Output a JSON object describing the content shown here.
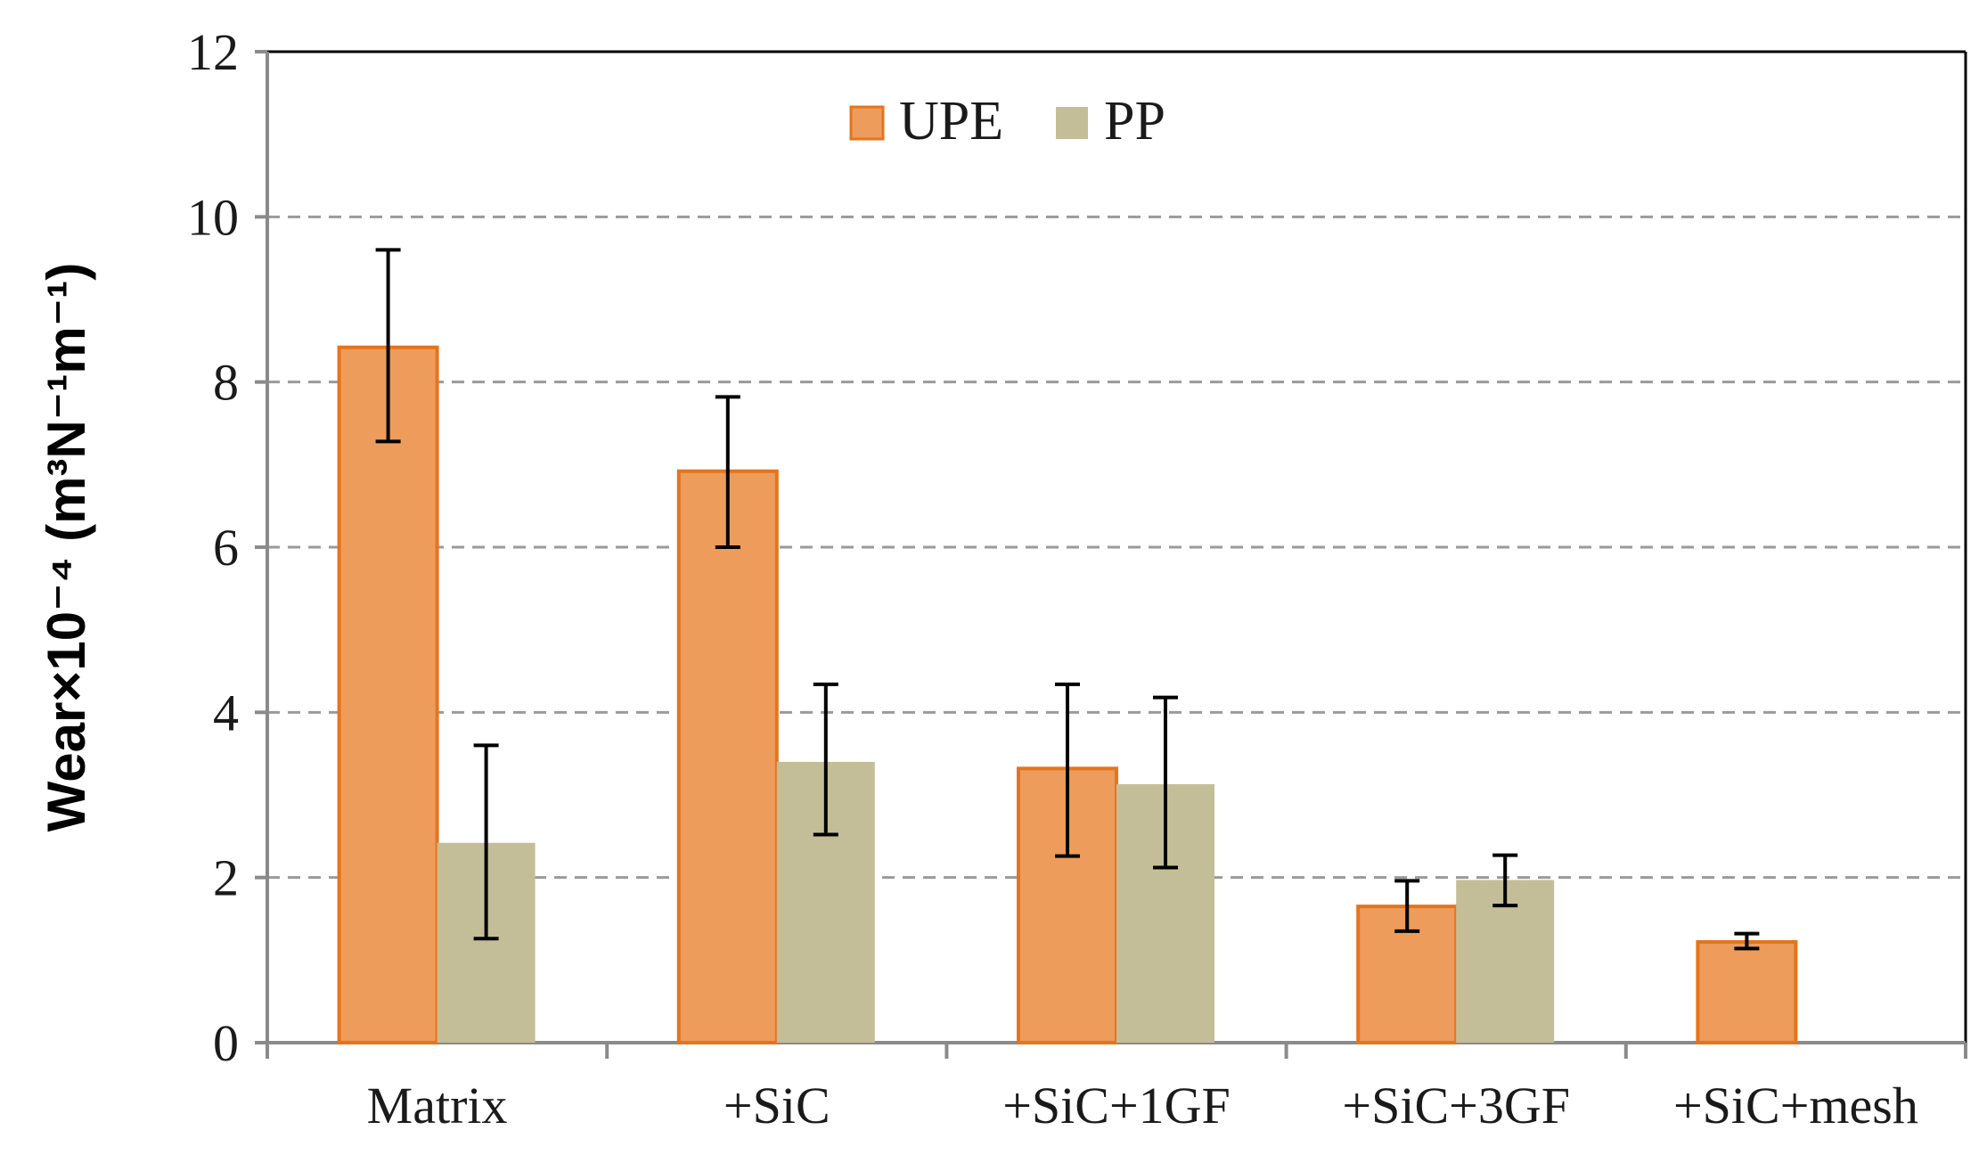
{
  "chart_data": {
    "type": "bar",
    "title": "",
    "xlabel": "",
    "ylabel": "Wear×10⁻⁴ (m³N⁻¹m⁻¹)",
    "ylim": [
      0,
      12
    ],
    "yticks": [
      "0",
      "2",
      "4",
      "6",
      "8",
      "10",
      "12"
    ],
    "grid": "horizontal-dashed",
    "legend_position": "top-left",
    "categories": [
      "Matrix",
      "+SiC",
      "+SiC+1GF",
      "+SiC+3GF",
      "+SiC+mesh"
    ],
    "series": [
      {
        "name": "UPE",
        "fill": "#ED9C5B",
        "stroke": "#E5741D",
        "values": [
          8.42,
          6.92,
          3.32,
          1.65,
          1.22
        ],
        "err_low": [
          7.28,
          6.0,
          2.26,
          1.35,
          1.14
        ],
        "err_high": [
          9.6,
          7.82,
          4.34,
          1.96,
          1.32
        ]
      },
      {
        "name": "PP",
        "fill": "#C4BE98",
        "stroke": "#C4BE98",
        "values": [
          2.42,
          3.4,
          3.13,
          1.97,
          null
        ],
        "err_low": [
          1.26,
          2.52,
          2.12,
          1.66,
          null
        ],
        "err_high": [
          3.6,
          4.34,
          4.18,
          2.27,
          null
        ]
      }
    ]
  }
}
